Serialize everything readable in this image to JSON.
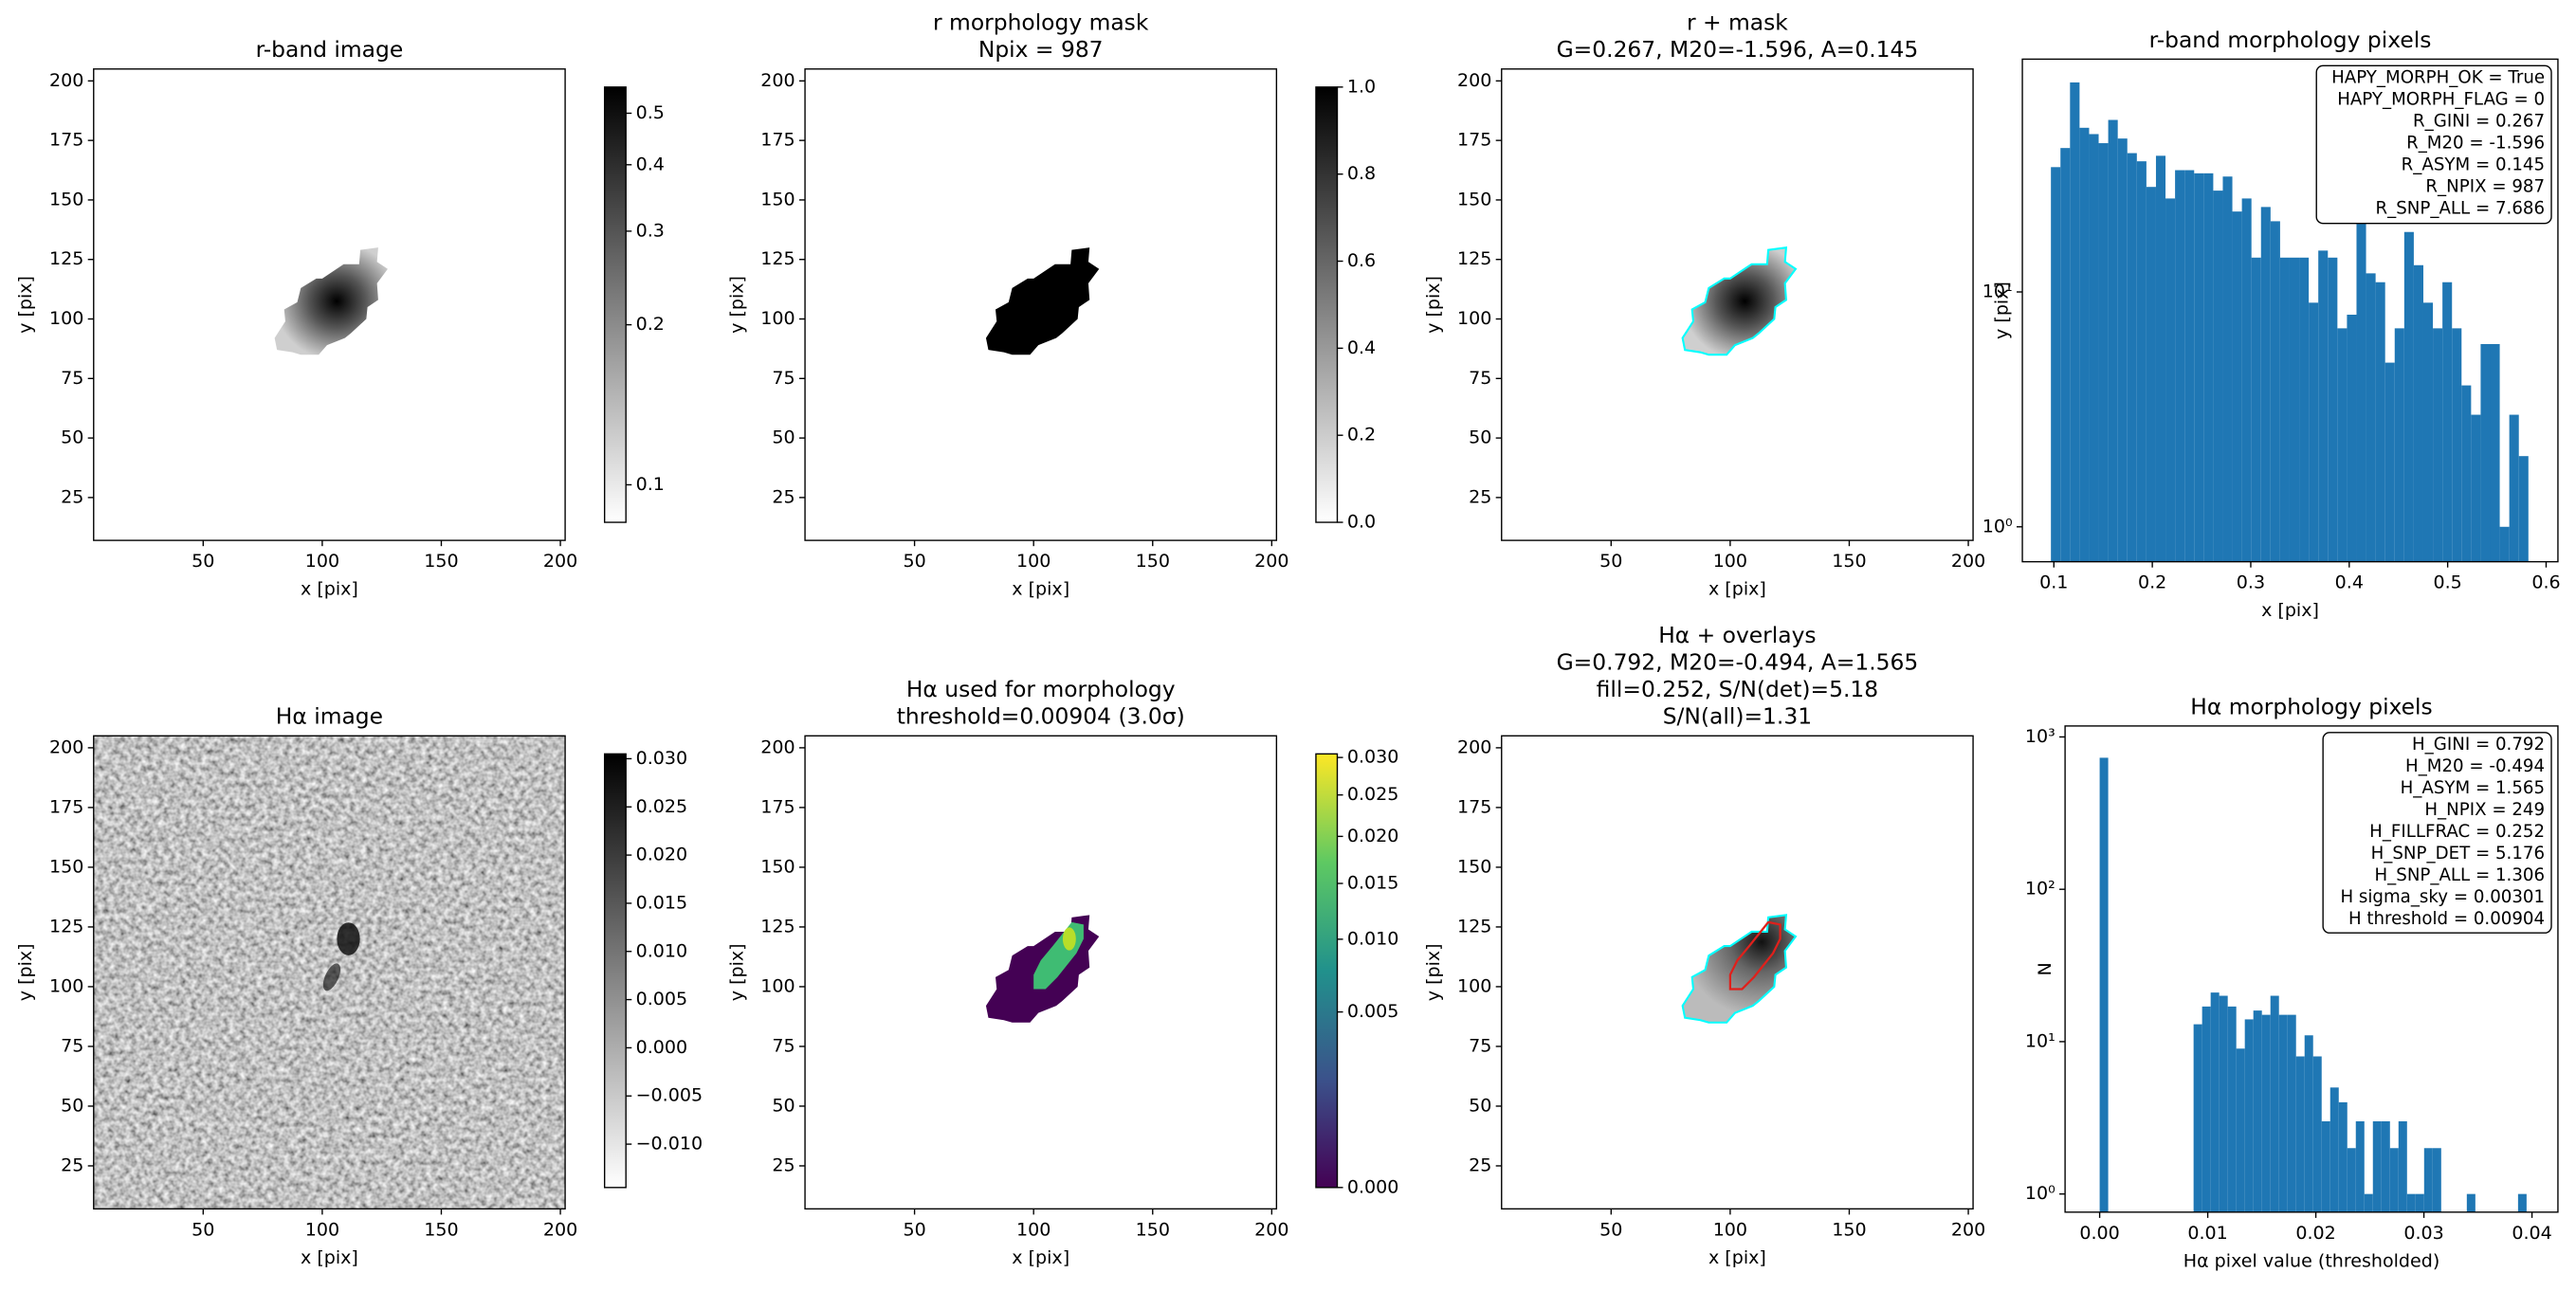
{
  "chart_data": [
    {
      "type": "image",
      "title": [
        "r-band image"
      ],
      "xlabel": "x [pix]",
      "ylabel": "y [pix]",
      "xlim": [
        4,
        202
      ],
      "ylim": [
        7,
        205
      ],
      "xticks": [
        50,
        100,
        150,
        200
      ],
      "yticks": [
        25,
        50,
        75,
        100,
        125,
        150,
        175,
        200
      ],
      "colorbar": {
        "scale": "log",
        "cmap": "gray_r",
        "clim": [
          0.085,
          0.56
        ],
        "ticks": [
          0.1,
          0.2,
          0.3,
          0.4,
          0.5
        ]
      }
    },
    {
      "type": "image",
      "title": [
        "r morphology mask",
        "Npix = 987"
      ],
      "xlabel": "x [pix]",
      "ylabel": "y [pix]",
      "xlim": [
        4,
        202
      ],
      "ylim": [
        7,
        205
      ],
      "xticks": [
        50,
        100,
        150,
        200
      ],
      "yticks": [
        25,
        50,
        75,
        100,
        125,
        150,
        175,
        200
      ],
      "colorbar": {
        "scale": "linear",
        "cmap": "gray_r",
        "clim": [
          0,
          1
        ],
        "ticks": [
          {
            "value": 0,
            "label": "0.0"
          },
          0.2,
          0.4,
          0.6,
          0.8,
          {
            "value": 1,
            "label": "1.0"
          }
        ]
      }
    },
    {
      "type": "image",
      "title": [
        "r + mask",
        "G=0.267, M20=-1.596, A=0.145"
      ],
      "xlabel": "x [pix]",
      "ylabel": "y [pix]",
      "xlim": [
        4,
        202
      ],
      "ylim": [
        7,
        205
      ],
      "xticks": [
        50,
        100,
        150,
        200
      ],
      "yticks": [
        25,
        50,
        75,
        100,
        125,
        150,
        175,
        200
      ]
    },
    {
      "type": "histogram",
      "title": [
        "r-band morphology pixels"
      ],
      "xlabel": "x [pix]",
      "ylabel": "y [pix]",
      "color": "#1f77b4",
      "yscale": "log",
      "xlim": [
        0.068,
        0.612
      ],
      "ylim": [
        0.71,
        98
      ],
      "xticks": [
        0.1,
        0.2,
        0.3,
        0.4,
        0.5,
        0.6
      ],
      "yticks": [
        {
          "value": 1,
          "label": "10⁰"
        },
        {
          "value": 10,
          "label": "10¹"
        }
      ],
      "bins": [
        0.097,
        0.1067,
        0.1164,
        0.1261,
        0.1358,
        0.1455,
        0.1552,
        0.1649,
        0.1746,
        0.1843,
        0.194,
        0.2037,
        0.2134,
        0.2231,
        0.2328,
        0.2425,
        0.2522,
        0.2619,
        0.2716,
        0.2813,
        0.291,
        0.3007,
        0.3104,
        0.3201,
        0.3298,
        0.3395,
        0.3492,
        0.3589,
        0.3686,
        0.3783,
        0.388,
        0.3977,
        0.4074,
        0.4171,
        0.4268,
        0.4365,
        0.4462,
        0.4559,
        0.4656,
        0.4753,
        0.485,
        0.4947,
        0.5044,
        0.5141,
        0.5238,
        0.5335,
        0.5432,
        0.5529,
        0.5626,
        0.5723,
        0.582
      ],
      "values": [
        34,
        41,
        78,
        50,
        47,
        43,
        54,
        45,
        39,
        36,
        28,
        38,
        25,
        33,
        33,
        32,
        32,
        27,
        31,
        22,
        25,
        14,
        23,
        20,
        14,
        14,
        14,
        9,
        15,
        14,
        7,
        8,
        24,
        12,
        11,
        5,
        7,
        18,
        13,
        9,
        7,
        11,
        7,
        4,
        3,
        6,
        6,
        1,
        3,
        2
      ],
      "annotation": [
        "HAPY_MORPH_OK = True",
        "HAPY_MORPH_FLAG = 0",
        "R_GINI = 0.267",
        "R_M20 = -1.596",
        "R_ASYM = 0.145",
        "R_NPIX = 987",
        "R_SNP_ALL = 7.686"
      ]
    },
    {
      "type": "image",
      "title": [
        "Hα image"
      ],
      "xlabel": "x [pix]",
      "ylabel": "y [pix]",
      "xlim": [
        4,
        202
      ],
      "ylim": [
        7,
        205
      ],
      "xticks": [
        50,
        100,
        150,
        200
      ],
      "yticks": [
        25,
        50,
        75,
        100,
        125,
        150,
        175,
        200
      ],
      "colorbar": {
        "scale": "linear",
        "cmap": "gray_r",
        "clim": [
          -0.0145,
          0.0305
        ],
        "ticks": [
          {
            "value": 0.03,
            "label": "0.030"
          },
          0.025,
          {
            "value": 0.02,
            "label": "0.020"
          },
          0.015,
          {
            "value": 0.01,
            "label": "0.010"
          },
          0.005,
          {
            "value": 0,
            "label": "0.000"
          },
          {
            "value": -0.005,
            "label": "−0.005"
          },
          {
            "value": -0.01,
            "label": "−0.010"
          }
        ]
      }
    },
    {
      "type": "image",
      "title": [
        "Hα used for morphology",
        "threshold=0.00904 (3.0σ)"
      ],
      "xlabel": "x [pix]",
      "ylabel": "y [pix]",
      "xlim": [
        4,
        202
      ],
      "ylim": [
        7,
        205
      ],
      "xticks": [
        50,
        100,
        150,
        200
      ],
      "yticks": [
        25,
        50,
        75,
        100,
        125,
        150,
        175,
        200
      ],
      "colorbar": {
        "scale": "sqrt",
        "cmap": "viridis",
        "clim": [
          0,
          0.0305
        ],
        "ticks": [
          {
            "value": 0,
            "label": "0.000"
          },
          0.005,
          {
            "value": 0.01,
            "label": "0.010"
          },
          0.015,
          {
            "value": 0.02,
            "label": "0.020"
          },
          0.025,
          {
            "value": 0.03,
            "label": "0.030"
          }
        ]
      }
    },
    {
      "type": "image",
      "title": [
        "Hα + overlays",
        "G=0.792, M20=-0.494, A=1.565",
        "fill=0.252, S/N(det)=5.18",
        "S/N(all)=1.31"
      ],
      "xlabel": "x [pix]",
      "ylabel": "y [pix]",
      "xlim": [
        4,
        202
      ],
      "ylim": [
        7,
        205
      ],
      "xticks": [
        50,
        100,
        150,
        200
      ],
      "yticks": [
        25,
        50,
        75,
        100,
        125,
        150,
        175,
        200
      ]
    },
    {
      "type": "histogram",
      "title": [
        "Hα morphology pixels"
      ],
      "xlabel": "Hα pixel value (thresholded)",
      "ylabel": "N",
      "color": "#1f77b4",
      "yscale": "log",
      "xlim": [
        -0.0032,
        0.0424
      ],
      "ylim": [
        0.76,
        1180
      ],
      "xticks": [
        {
          "value": 0,
          "label": "0.00"
        },
        {
          "value": 0.01,
          "label": "0.01"
        },
        {
          "value": 0.02,
          "label": "0.02"
        },
        {
          "value": 0.03,
          "label": "0.03"
        },
        {
          "value": 0.04,
          "label": "0.04"
        }
      ],
      "yticks": [
        {
          "value": 1,
          "label": "10⁰"
        },
        {
          "value": 10,
          "label": "10¹"
        },
        {
          "value": 100,
          "label": "10²"
        },
        {
          "value": 1000,
          "label": "10³"
        }
      ],
      "bins": [
        0,
        0.00079,
        0.00158,
        0.00237,
        0.00316,
        0.00395,
        0.00474,
        0.00553,
        0.00632,
        0.00711,
        0.0079,
        0.00869,
        0.00948,
        0.01027,
        0.01106,
        0.01185,
        0.01264,
        0.01343,
        0.01422,
        0.01501,
        0.0158,
        0.01659,
        0.01738,
        0.01817,
        0.01896,
        0.01975,
        0.02054,
        0.02133,
        0.02212,
        0.02291,
        0.0237,
        0.02449,
        0.02528,
        0.02607,
        0.02686,
        0.02765,
        0.02844,
        0.02923,
        0.03002,
        0.03081,
        0.0316,
        0.03239,
        0.03318,
        0.03397,
        0.03476,
        0.03555,
        0.03634,
        0.03713,
        0.03792,
        0.03871,
        0.0395
      ],
      "values": [
        730,
        0,
        0,
        0,
        0,
        0,
        0,
        0,
        0,
        0,
        0,
        13,
        17,
        21,
        20,
        17,
        9,
        14,
        16,
        15,
        20,
        15,
        15,
        8,
        11,
        8,
        3,
        5,
        4,
        2,
        3,
        1,
        3,
        3,
        2,
        3,
        1,
        1,
        2,
        2,
        0,
        0,
        0,
        1,
        0,
        0,
        0,
        0,
        0,
        1
      ],
      "annotation": [
        "H_GINI = 0.792",
        "H_M20 = -0.494",
        "H_ASYM = 1.565",
        "H_NPIX = 249",
        "H_FILLFRAC = 0.252",
        "H_SNP_DET = 5.176",
        "H_SNP_ALL = 1.306",
        "H sigma_sky = 0.00301",
        "H threshold = 0.00904"
      ]
    }
  ]
}
